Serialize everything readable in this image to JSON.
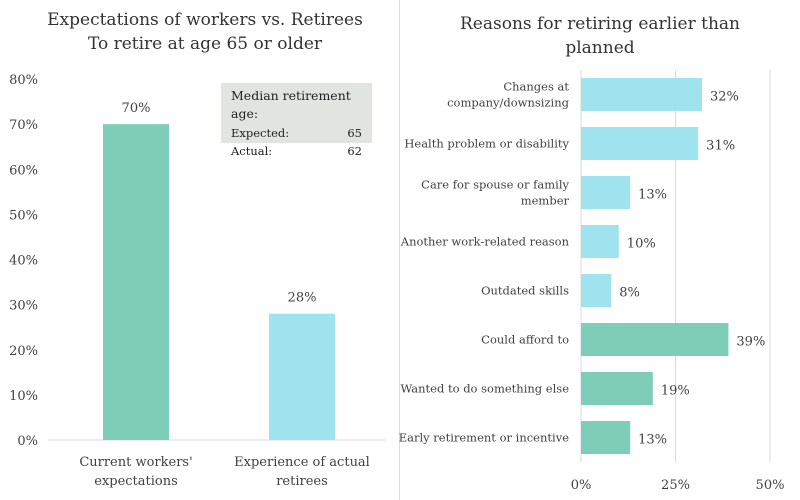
{
  "chart_data": [
    {
      "type": "bar",
      "title": "Expectations of workers vs. Retirees",
      "subtitle": "To retire at age 65 or older",
      "categories": [
        "Current workers' expectations",
        "Experience of actual retirees"
      ],
      "category_lines": [
        [
          "Current workers'",
          "expectations"
        ],
        [
          "Experience of actual",
          "retirees"
        ]
      ],
      "values": [
        70,
        28
      ],
      "value_labels": [
        "70%",
        "28%"
      ],
      "bar_colors": [
        "#7ecdb6",
        "#9fe3ee"
      ],
      "ylim": [
        0,
        80
      ],
      "yticks": [
        0,
        10,
        20,
        30,
        40,
        50,
        60,
        70,
        80
      ],
      "ytick_labels": [
        "0%",
        "10%",
        "20%",
        "30%",
        "40%",
        "50%",
        "60%",
        "70%",
        "80%"
      ],
      "grid": false,
      "annotation": {
        "title": "Median retirement age:",
        "rows": [
          {
            "label": "Expected:",
            "value": "65"
          },
          {
            "label": "Actual:",
            "value": "62"
          }
        ]
      }
    },
    {
      "type": "bar",
      "orientation": "horizontal",
      "title": "Reasons for retiring earlier than planned",
      "categories": [
        "Changes at company/downsizing",
        "Health problem or disability",
        "Care for spouse or family member",
        "Another work-related reason",
        "Outdated skills",
        "Could afford to",
        "Wanted to do something else",
        "Early retirement or incentive"
      ],
      "category_lines": [
        [
          "Changes at",
          "company/downsizing"
        ],
        [
          "Health problem or disability"
        ],
        [
          "Care for spouse or family",
          "member"
        ],
        [
          "Another work-related reason"
        ],
        [
          "Outdated skills"
        ],
        [
          "Could afford to"
        ],
        [
          "Wanted to do something else"
        ],
        [
          "Early retirement or incentive"
        ]
      ],
      "values": [
        32,
        31,
        13,
        10,
        8,
        39,
        19,
        13
      ],
      "value_labels": [
        "32%",
        "31%",
        "13%",
        "10%",
        "8%",
        "39%",
        "19%",
        "13%"
      ],
      "bar_colors": [
        "#9fe3ee",
        "#9fe3ee",
        "#9fe3ee",
        "#9fe3ee",
        "#9fe3ee",
        "#7ecdb6",
        "#7ecdb6",
        "#7ecdb6"
      ],
      "xlim": [
        0,
        50
      ],
      "xticks": [
        0,
        25,
        50
      ],
      "xtick_labels": [
        "0%",
        "25%",
        "50%"
      ],
      "grid": true
    }
  ]
}
